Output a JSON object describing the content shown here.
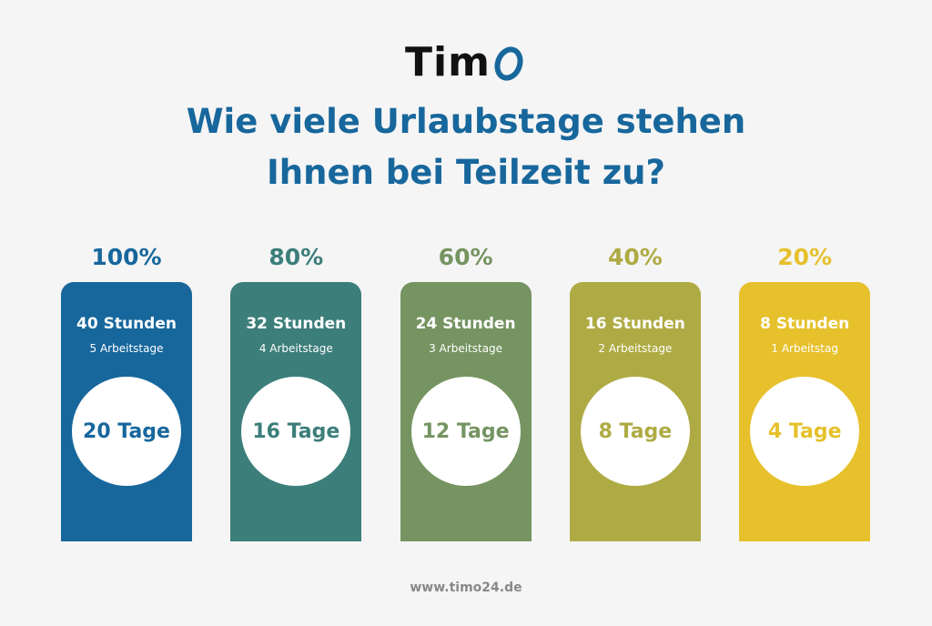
{
  "logo": {
    "text": "Tim"
  },
  "title": [
    "Wie viele Urlaubstage stehen",
    "Ihnen bei Teilzeit zu?"
  ],
  "cards": [
    {
      "percent": "100%",
      "hours": "40 Stunden",
      "days": "5 Arbeitstage",
      "vacation": "20 Tage",
      "color": "#17679c"
    },
    {
      "percent": "80%",
      "hours": "32 Stunden",
      "days": "4 Arbeitstage",
      "vacation": "16 Tage",
      "color": "#3c7e7a"
    },
    {
      "percent": "60%",
      "hours": "24 Stunden",
      "days": "3 Arbeitstage",
      "vacation": "12 Tage",
      "color": "#759461"
    },
    {
      "percent": "40%",
      "hours": "16 Stunden",
      "days": "2 Arbeitstage",
      "vacation": "8 Tage",
      "color": "#afab44"
    },
    {
      "percent": "20%",
      "hours": "8 Stunden",
      "days": "1 Arbeitstag",
      "vacation": "4 Tage",
      "color": "#e6c12c"
    }
  ],
  "footer": "www.timo24.de"
}
